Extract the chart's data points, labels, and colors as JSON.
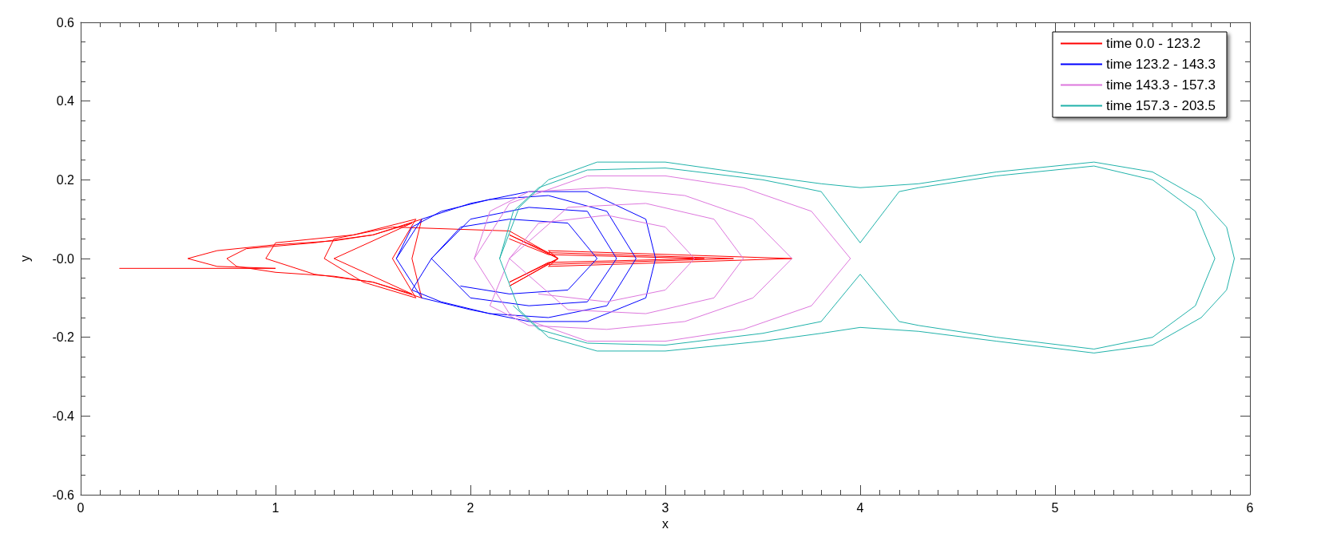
{
  "chart_data": {
    "type": "line",
    "xlabel": "x",
    "ylabel": "y",
    "xlim": [
      0,
      6
    ],
    "xticks": [
      0,
      1,
      2,
      3,
      4,
      5,
      6
    ],
    "ylim": [
      -0.6,
      0.6
    ],
    "yticks": [
      -0.6,
      -0.4,
      -0.2,
      {
        "value": 0,
        "label": "-0.0"
      },
      0.2,
      0.4,
      0.6
    ],
    "grid": false,
    "legend": "top right",
    "marker": "none",
    "line_style": "solid",
    "series": [
      {
        "name": "time 0.0 - 123.2",
        "color": "#ff0000",
        "x": [
          0.2,
          1.0,
          0.7,
          0.55,
          0.7,
          1.0,
          1.3,
          1.5,
          1.75,
          1.7,
          1.75,
          1.5,
          1.3,
          1.0,
          0.8,
          0.75,
          0.85,
          1.2,
          1.5,
          1.7,
          1.3,
          1.7,
          1.5,
          1.2,
          0.95,
          1.0,
          1.4,
          1.72,
          1.6,
          1.72,
          1.45,
          1.25,
          1.3,
          1.6,
          2.2,
          2.45,
          2.4,
          3.65,
          2.4,
          2.45,
          2.2,
          2.4,
          3.35,
          2.4,
          2.2,
          2.45,
          2.2,
          2.4,
          3.2,
          2.4,
          2.2
        ],
        "values": [
          -0.025,
          -0.025,
          -0.02,
          0,
          0.02,
          0.035,
          0.045,
          0.06,
          0.1,
          0,
          -0.1,
          -0.06,
          -0.045,
          -0.035,
          -0.02,
          0,
          0.025,
          0.04,
          0.06,
          0.09,
          0,
          -0.09,
          -0.06,
          -0.04,
          0,
          0.04,
          0.06,
          0.1,
          0,
          -0.1,
          -0.06,
          0,
          0.05,
          0.08,
          0.07,
          0,
          0.02,
          0,
          -0.02,
          0,
          -0.07,
          -0.015,
          0,
          0.015,
          0.06,
          0,
          -0.06,
          -0.01,
          0,
          0.01,
          0.05
        ]
      },
      {
        "name": "time 123.2 - 143.3",
        "color": "#0000ff",
        "x": [
          1.62,
          1.75,
          2.0,
          2.3,
          2.6,
          2.9,
          2.95,
          2.9,
          2.6,
          2.3,
          2.0,
          1.75,
          1.62,
          1.7,
          1.85,
          2.1,
          2.4,
          2.7,
          2.85,
          2.7,
          2.4,
          2.1,
          1.85,
          1.7,
          1.8,
          2.0,
          2.3,
          2.6,
          2.75,
          2.6,
          2.3,
          2.0,
          1.8,
          1.95,
          2.2,
          2.5,
          2.65,
          2.5,
          2.2,
          1.95
        ],
        "values": [
          0,
          0.1,
          0.14,
          0.17,
          0.17,
          0.1,
          0,
          -0.1,
          -0.16,
          -0.16,
          -0.13,
          -0.1,
          0,
          0.08,
          0.12,
          0.15,
          0.16,
          0.12,
          0,
          -0.12,
          -0.15,
          -0.14,
          -0.11,
          -0.08,
          0,
          0.1,
          0.13,
          0.12,
          0,
          -0.11,
          -0.12,
          -0.1,
          0,
          0.08,
          0.1,
          0.09,
          0,
          -0.08,
          -0.09,
          -0.07
        ]
      },
      {
        "name": "time 143.3 - 157.3",
        "color": "#dd77dd",
        "x": [
          2.02,
          2.2,
          2.6,
          3.0,
          3.4,
          3.75,
          3.95,
          3.75,
          3.4,
          3.0,
          2.6,
          2.2,
          2.02,
          2.1,
          2.3,
          2.7,
          3.1,
          3.45,
          3.65,
          3.45,
          3.1,
          2.7,
          2.3,
          2.1,
          2.2,
          2.5,
          2.9,
          3.25,
          3.4,
          3.25,
          2.9,
          2.5,
          2.2,
          2.35,
          2.7,
          3.0,
          3.15,
          3.0,
          2.7,
          2.35
        ],
        "values": [
          0,
          0.14,
          0.21,
          0.21,
          0.18,
          0.12,
          0,
          -0.12,
          -0.18,
          -0.21,
          -0.21,
          -0.14,
          0,
          0.12,
          0.17,
          0.18,
          0.16,
          0.1,
          0,
          -0.1,
          -0.16,
          -0.18,
          -0.17,
          -0.12,
          0,
          0.13,
          0.14,
          0.1,
          0,
          -0.1,
          -0.14,
          -0.13,
          0,
          0.09,
          0.11,
          0.08,
          0,
          -0.08,
          -0.11,
          -0.09
        ]
      },
      {
        "name": "time 157.3 - 203.5",
        "color": "#20b2aa",
        "x": [
          2.15,
          2.25,
          2.4,
          2.65,
          3.0,
          3.5,
          3.8,
          4.0,
          4.3,
          4.7,
          5.2,
          5.5,
          5.75,
          5.88,
          5.92,
          5.88,
          5.75,
          5.5,
          5.2,
          4.7,
          4.3,
          4.0,
          3.8,
          3.5,
          3.0,
          2.65,
          2.4,
          2.25,
          2.15,
          2.22,
          2.35,
          2.6,
          3.0,
          3.5,
          3.8,
          4.0,
          4.2,
          4.3,
          4.7,
          5.2,
          5.5,
          5.72,
          5.82,
          5.72,
          5.5,
          5.2,
          4.7,
          4.3,
          4.2,
          4.0,
          3.8,
          3.5,
          3.0,
          2.6,
          2.35,
          2.22
        ],
        "values": [
          0,
          0.13,
          0.2,
          0.245,
          0.245,
          0.21,
          0.19,
          0.18,
          0.19,
          0.22,
          0.245,
          0.22,
          0.15,
          0.08,
          0,
          -0.08,
          -0.15,
          -0.22,
          -0.24,
          -0.21,
          -0.185,
          -0.175,
          -0.19,
          -0.21,
          -0.235,
          -0.235,
          -0.2,
          -0.13,
          0,
          0.12,
          0.18,
          0.225,
          0.23,
          0.2,
          0.17,
          0.04,
          0.17,
          0.18,
          0.21,
          0.235,
          0.2,
          0.12,
          0,
          -0.12,
          -0.2,
          -0.23,
          -0.2,
          -0.17,
          -0.16,
          -0.04,
          -0.16,
          -0.19,
          -0.22,
          -0.215,
          -0.18,
          -0.12
        ]
      }
    ]
  }
}
